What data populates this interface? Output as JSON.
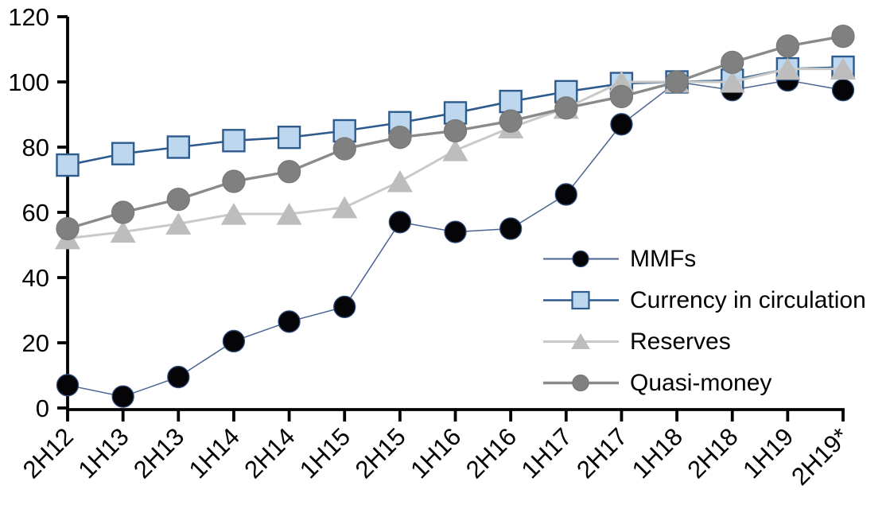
{
  "chart_data": {
    "type": "line",
    "title": "",
    "xlabel": "",
    "ylabel": "",
    "categories": [
      "2H12",
      "1H13",
      "2H13",
      "1H14",
      "2H14",
      "1H15",
      "2H15",
      "1H16",
      "2H16",
      "1H17",
      "2H17",
      "1H18",
      "2H18",
      "1H19",
      "2H19*"
    ],
    "series": [
      {
        "name": "MMFs",
        "marker": "circle",
        "marker_fill": "#050508",
        "marker_stroke": "#2e4a7a",
        "line_color": "#4a6390",
        "line_width": 1.5,
        "marker_size": 27,
        "values": [
          7,
          3.5,
          9.5,
          20.5,
          26.5,
          31,
          57,
          54,
          55,
          65.5,
          87,
          100,
          97.5,
          100.5,
          97.5
        ]
      },
      {
        "name": "Currency in circulation",
        "marker": "square",
        "marker_fill": "#bdd7ee",
        "marker_stroke": "#2e5b8d",
        "line_color": "#2e5b8d",
        "line_width": 2.6,
        "marker_size": 27,
        "values": [
          74.5,
          78,
          80,
          82,
          83,
          85,
          87.5,
          90.5,
          94,
          97,
          99.5,
          100,
          100.5,
          104,
          104.5
        ]
      },
      {
        "name": "Reserves",
        "marker": "triangle",
        "marker_fill": "#bdbdbd",
        "marker_stroke": "#bdbdbd",
        "line_color": "#c9c9c9",
        "line_width": 3,
        "marker_size": 29,
        "values": [
          52,
          54,
          56.5,
          59.5,
          59.5,
          61.5,
          69.5,
          79,
          86,
          92,
          100,
          100,
          100,
          104,
          104
        ]
      },
      {
        "name": "Quasi-money",
        "marker": "circle",
        "marker_fill": "#808080",
        "marker_stroke": "#787878",
        "line_color": "#8a8a8a",
        "line_width": 3.4,
        "marker_size": 28,
        "values": [
          55,
          60,
          64,
          69.5,
          72.5,
          79.5,
          83,
          85,
          88,
          92,
          95.5,
          100,
          106,
          111,
          114
        ]
      }
    ],
    "ylim": [
      0,
      120
    ],
    "yticks": [
      0,
      20,
      40,
      60,
      80,
      100,
      120
    ],
    "grid": false,
    "legend_position": "inside-right",
    "axis_color": "#000000",
    "tick_label_color": "#000000"
  }
}
